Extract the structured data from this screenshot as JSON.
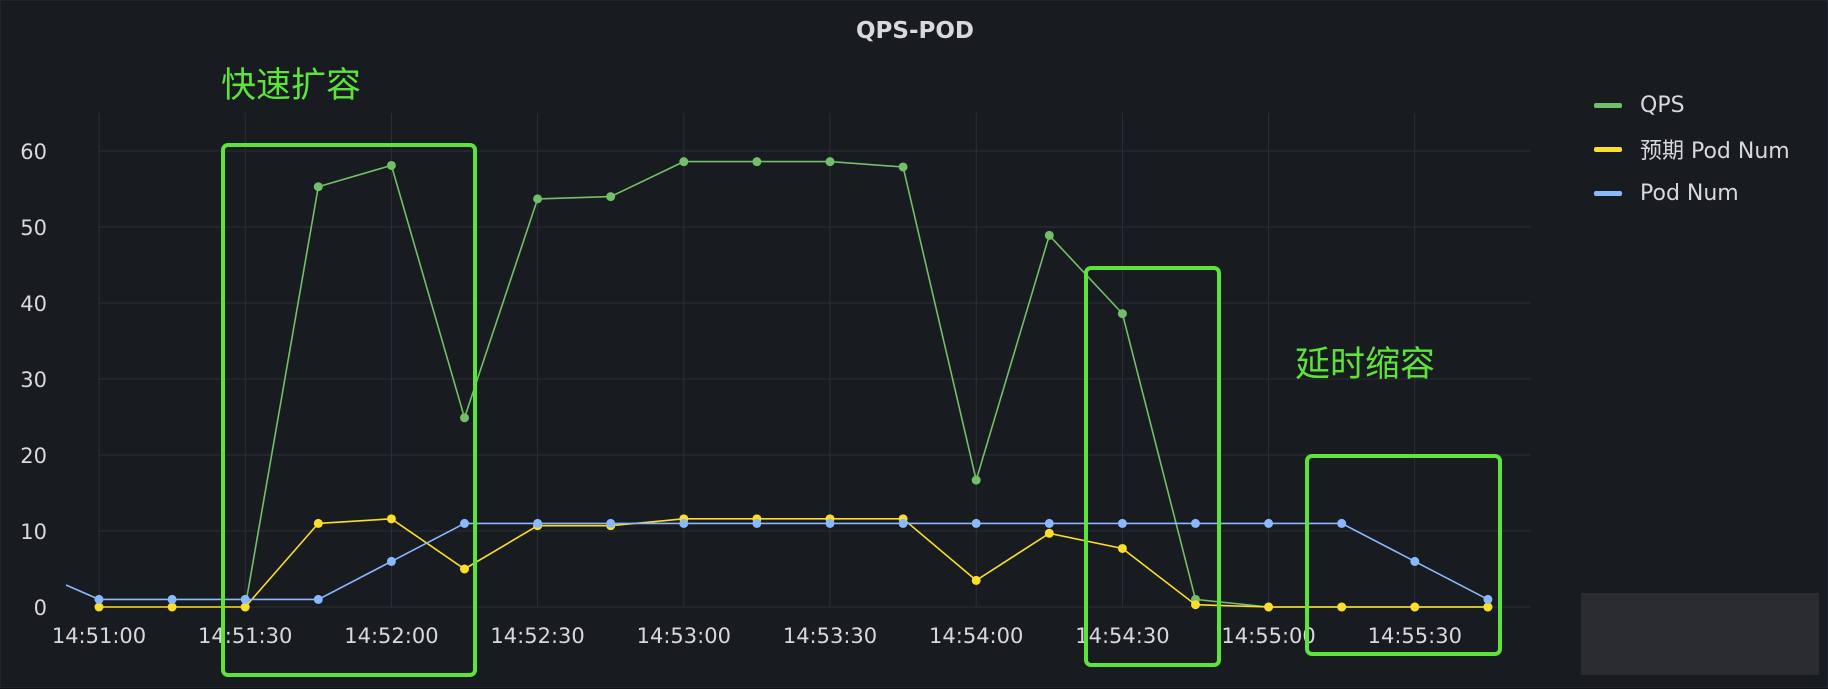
{
  "panel": {
    "title": "QPS-POD"
  },
  "annotations": {
    "scale_up": "快速扩容",
    "scale_down": "延时缩容"
  },
  "colors": {
    "qps": "#73bf69",
    "expected_pod": "#fade2a",
    "pod": "#8ab8ff",
    "annotation": "#5ee33a",
    "grid": "#2c3036",
    "text": "#d8d9da"
  },
  "chart_data": {
    "type": "line",
    "title": "QPS-POD",
    "x": [
      "14:51:00",
      "14:51:15",
      "14:51:30",
      "14:51:45",
      "14:52:00",
      "14:52:15",
      "14:52:30",
      "14:52:45",
      "14:53:00",
      "14:53:15",
      "14:53:30",
      "14:53:45",
      "14:54:00",
      "14:54:15",
      "14:54:30",
      "14:54:45",
      "14:55:00",
      "14:55:15",
      "14:55:30",
      "14:55:45"
    ],
    "x_tick_labels": [
      "14:51:00",
      "14:51:30",
      "14:52:00",
      "14:52:30",
      "14:53:00",
      "14:53:30",
      "14:54:00",
      "14:54:30",
      "14:55:00",
      "14:55:30"
    ],
    "ylim": [
      0,
      65
    ],
    "y_ticks": [
      0,
      10,
      20,
      30,
      40,
      50,
      60
    ],
    "grid": true,
    "legend_position": "right",
    "series": [
      {
        "name": "QPS",
        "color": "#73bf69",
        "values": [
          null,
          null,
          0,
          55.3,
          58.1,
          24.9,
          53.7,
          54.0,
          58.6,
          58.6,
          58.6,
          57.9,
          16.7,
          48.9,
          38.6,
          1.0,
          0,
          0,
          0,
          0
        ]
      },
      {
        "name": "预期 Pod Num",
        "color": "#fade2a",
        "values": [
          0,
          0,
          0,
          11,
          11.6,
          5,
          10.7,
          10.7,
          11.6,
          11.6,
          11.6,
          11.6,
          3.5,
          9.7,
          7.7,
          0.3,
          0,
          0,
          0,
          0
        ]
      },
      {
        "name": "Pod Num",
        "color": "#8ab8ff",
        "values": [
          1,
          1,
          1,
          1,
          6,
          11,
          11,
          11,
          11,
          11,
          11,
          11,
          11,
          11,
          11,
          11,
          11,
          11,
          6,
          1
        ]
      }
    ],
    "pre_start_values": {
      "Pod Num": 2.9
    }
  }
}
